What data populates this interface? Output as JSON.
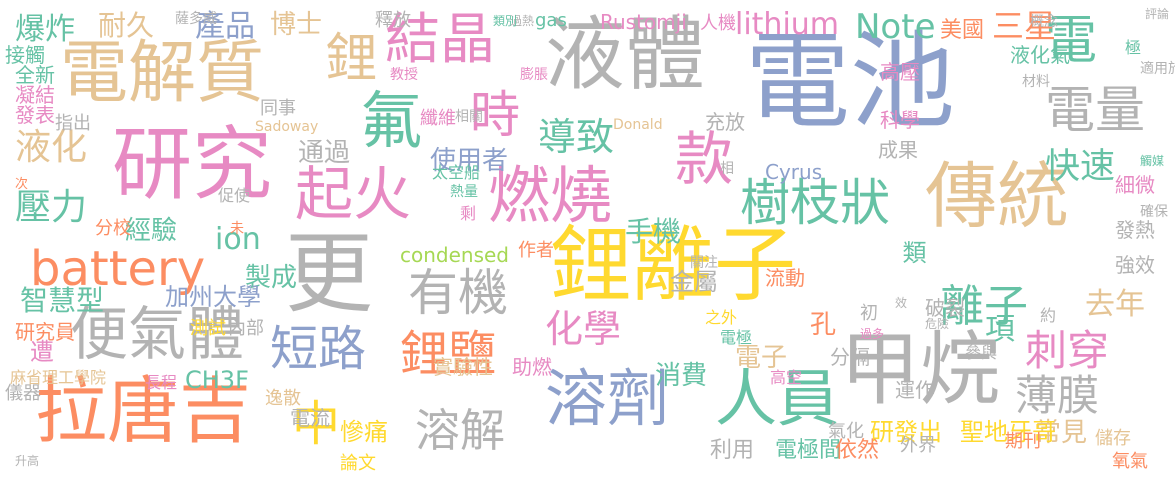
{
  "palette": {
    "blue": "#8da0cb",
    "orange": "#fc8d62",
    "pink": "#e78ac3",
    "green": "#66c2a5",
    "lime": "#a6d854",
    "yellow": "#ffd92f",
    "tan": "#e5c494",
    "gray": "#b3b3b3"
  },
  "words": [
    {
      "text": "電池",
      "color": "blue"
    },
    {
      "text": "鋰離子",
      "color": "yellow"
    },
    {
      "text": "液體",
      "color": "gray"
    },
    {
      "text": "電解質",
      "color": "tan"
    },
    {
      "text": "研究",
      "color": "pink"
    },
    {
      "text": "傳統",
      "color": "tan"
    },
    {
      "text": "甲烷",
      "color": "gray"
    },
    {
      "text": "拉唐吉",
      "color": "orange"
    },
    {
      "text": "溶劑",
      "color": "blue"
    },
    {
      "text": "人員",
      "color": "green"
    },
    {
      "text": "更",
      "color": "gray"
    },
    {
      "text": "燃燒",
      "color": "pink"
    },
    {
      "text": "起火",
      "color": "pink"
    },
    {
      "text": "款",
      "color": "pink"
    },
    {
      "text": "氟",
      "color": "green"
    },
    {
      "text": "電",
      "color": "green"
    },
    {
      "text": "結晶",
      "color": "pink"
    },
    {
      "text": "鋰",
      "color": "tan"
    },
    {
      "text": "時",
      "color": "pink"
    },
    {
      "text": "電量",
      "color": "gray"
    },
    {
      "text": "樹枝狀",
      "color": "green"
    },
    {
      "text": "便氣體",
      "color": "gray"
    },
    {
      "text": "有機",
      "color": "gray"
    },
    {
      "text": "短路",
      "color": "blue"
    },
    {
      "text": "鋰鹽",
      "color": "orange"
    },
    {
      "text": "溶解",
      "color": "gray"
    },
    {
      "text": "中",
      "color": "yellow"
    },
    {
      "text": "薄膜",
      "color": "gray"
    },
    {
      "text": "離子",
      "color": "green"
    },
    {
      "text": "刺穿",
      "color": "pink"
    },
    {
      "text": "導致",
      "color": "green"
    },
    {
      "text": "化學",
      "color": "pink"
    },
    {
      "text": "battery",
      "color": "orange"
    },
    {
      "text": "快速",
      "color": "green"
    },
    {
      "text": "爆炸",
      "color": "green"
    },
    {
      "text": "耐久",
      "color": "tan"
    },
    {
      "text": "產品",
      "color": "blue"
    },
    {
      "text": "博士",
      "color": "tan"
    },
    {
      "text": "液化",
      "color": "tan"
    },
    {
      "text": "壓力",
      "color": "green"
    },
    {
      "text": "lithium",
      "color": "pink"
    },
    {
      "text": "Note",
      "color": "green"
    },
    {
      "text": "三星",
      "color": "orange"
    },
    {
      "text": "美國",
      "color": "orange"
    },
    {
      "text": "手機",
      "color": "green"
    },
    {
      "text": "使用者",
      "color": "blue"
    },
    {
      "text": "通過",
      "color": "gray"
    },
    {
      "text": "ion",
      "color": "green"
    },
    {
      "text": "經驗",
      "color": "green"
    },
    {
      "text": "製成",
      "color": "green"
    },
    {
      "text": "智慧型",
      "color": "green"
    },
    {
      "text": "加州大學",
      "color": "blue"
    },
    {
      "text": "去年",
      "color": "tan"
    },
    {
      "text": "項",
      "color": "green"
    },
    {
      "text": "消費",
      "color": "green"
    },
    {
      "text": "電子",
      "color": "tan"
    },
    {
      "text": "常見",
      "color": "tan"
    },
    {
      "text": "慘痛",
      "color": "yellow"
    },
    {
      "text": "研發出",
      "color": "yellow"
    },
    {
      "text": "聖地牙哥",
      "color": "yellow"
    },
    {
      "text": "電極間",
      "color": "green"
    },
    {
      "text": "依然",
      "color": "orange"
    },
    {
      "text": "利用",
      "color": "gray"
    },
    {
      "text": "電流",
      "color": "gray"
    },
    {
      "text": "CH3F",
      "color": "green"
    },
    {
      "text": "遭",
      "color": "pink"
    },
    {
      "text": "研究員",
      "color": "orange"
    },
    {
      "text": "儀器",
      "color": "gray"
    },
    {
      "text": "逸散",
      "color": "tan"
    },
    {
      "text": "論文",
      "color": "yellow"
    },
    {
      "text": "期刊",
      "color": "orange"
    },
    {
      "text": "儲存",
      "color": "tan"
    },
    {
      "text": "氧氣",
      "color": "orange"
    },
    {
      "text": "流動",
      "color": "orange"
    },
    {
      "text": "金屬",
      "color": "gray"
    },
    {
      "text": "破裂",
      "color": "gray"
    },
    {
      "text": "細微",
      "color": "pink"
    },
    {
      "text": "發熱",
      "color": "gray"
    },
    {
      "text": "強效",
      "color": "gray"
    },
    {
      "text": "類",
      "color": "green"
    },
    {
      "text": "孔",
      "color": "orange"
    },
    {
      "text": "科學",
      "color": "pink"
    },
    {
      "text": "成果",
      "color": "gray"
    },
    {
      "text": "Cyrus",
      "color": "blue"
    },
    {
      "text": "condensed",
      "color": "lime"
    },
    {
      "text": "實驗性",
      "color": "tan"
    },
    {
      "text": "助燃",
      "color": "pink"
    },
    {
      "text": "分隔",
      "color": "gray"
    },
    {
      "text": "運作",
      "color": "gray"
    },
    {
      "text": "外界",
      "color": "gray"
    },
    {
      "text": "氣化",
      "color": "gray"
    },
    {
      "text": "接觸",
      "color": "green"
    },
    {
      "text": "全新",
      "color": "green"
    },
    {
      "text": "凝結",
      "color": "pink"
    },
    {
      "text": "發表",
      "color": "pink"
    },
    {
      "text": "指出",
      "color": "gray"
    },
    {
      "text": "同事",
      "color": "gray"
    },
    {
      "text": "纖維",
      "color": "pink"
    },
    {
      "text": "釋放",
      "color": "gray"
    },
    {
      "text": "人機",
      "color": "pink"
    },
    {
      "text": "Rustomji",
      "color": "pink"
    },
    {
      "text": "gas",
      "color": "green"
    },
    {
      "text": "液化氣",
      "color": "green"
    },
    {
      "text": "高壓",
      "color": "pink"
    },
    {
      "text": "極",
      "color": "green"
    },
    {
      "text": "分校",
      "color": "orange"
    },
    {
      "text": "作者",
      "color": "orange"
    },
    {
      "text": "內部",
      "color": "gray"
    },
    {
      "text": "測試",
      "color": "yellow"
    },
    {
      "text": "麻省理工學院",
      "color": "tan"
    },
    {
      "text": "長程",
      "color": "pink"
    },
    {
      "text": "電極",
      "color": "green"
    },
    {
      "text": "之外",
      "color": "yellow"
    },
    {
      "text": "高空",
      "color": "pink"
    },
    {
      "text": "初",
      "color": "gray"
    },
    {
      "text": "約",
      "color": "gray"
    },
    {
      "text": "參與",
      "color": "gray"
    },
    {
      "text": "充放",
      "color": "gray"
    },
    {
      "text": "太空船",
      "color": "green"
    },
    {
      "text": "熱量",
      "color": "green"
    },
    {
      "text": "相關",
      "color": "gray"
    },
    {
      "text": "膨脹",
      "color": "pink"
    },
    {
      "text": "教授",
      "color": "pink"
    },
    {
      "text": "Sadoway",
      "color": "tan"
    },
    {
      "text": "Donald",
      "color": "tan"
    },
    {
      "text": "材料",
      "color": "gray"
    },
    {
      "text": "適用於",
      "color": "gray"
    },
    {
      "text": "評論",
      "color": "gray"
    },
    {
      "text": "概念",
      "color": "gray"
    },
    {
      "text": "觸媒",
      "color": "green"
    },
    {
      "text": "確保",
      "color": "gray"
    },
    {
      "text": "效",
      "color": "gray"
    },
    {
      "text": "危險",
      "color": "gray"
    },
    {
      "text": "過多",
      "color": "pink"
    },
    {
      "text": "關注",
      "color": "gray"
    },
    {
      "text": "相",
      "color": "gray"
    },
    {
      "text": "未",
      "color": "orange"
    },
    {
      "text": "促使",
      "color": "gray"
    },
    {
      "text": "剩",
      "color": "pink"
    },
    {
      "text": "次",
      "color": "orange"
    },
    {
      "text": "薩多威",
      "color": "gray"
    },
    {
      "text": "過熱",
      "color": "gray"
    },
    {
      "text": "類別",
      "color": "green"
    },
    {
      "text": "升高",
      "color": "gray"
    },
    {
      "text": "新",
      "color": "orange"
    }
  ]
}
